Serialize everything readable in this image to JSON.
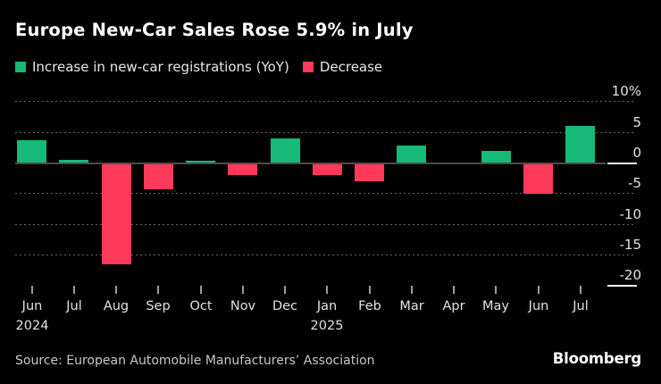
{
  "title": "Europe New-Car Sales Rose 5.9% in July",
  "legend": [
    {
      "name": "increase",
      "label": "Increase in new-car registrations (YoY)",
      "color": "#16b978"
    },
    {
      "name": "decrease",
      "label": "Decrease",
      "color": "#fc3a5a"
    }
  ],
  "source": "Source: European Automobile Manufacturers’ Association",
  "brand": "Bloomberg",
  "colors": {
    "background": "#000000",
    "positive": "#16b978",
    "negative": "#fc3a5a",
    "gridline": "#646464",
    "zero_line": "#4d4d4d",
    "axis_segment": "#ededed",
    "text": "#e2e2e2"
  },
  "chart_data": {
    "type": "bar",
    "title": "Europe New-Car Sales Rose 5.9% in July",
    "categories": [
      "Jun",
      "Jul",
      "Aug",
      "Sep",
      "Oct",
      "Nov",
      "Dec",
      "Jan",
      "Feb",
      "Mar",
      "Apr",
      "May",
      "Jun",
      "Jul"
    ],
    "year_markers": [
      {
        "index": 0,
        "label": "2024"
      },
      {
        "index": 7,
        "label": "2025"
      }
    ],
    "values": [
      3.6,
      0.4,
      -16.6,
      -4.3,
      0.3,
      -2.0,
      4.0,
      -2.1,
      -3.0,
      2.8,
      -0.3,
      1.9,
      -5.1,
      5.9
    ],
    "unit": "%",
    "ylabel": "",
    "xlabel": "",
    "ylim": [
      -20,
      10
    ],
    "yticks": [
      10,
      5,
      0,
      -5,
      -10,
      -15,
      -20
    ],
    "ytick_labels": [
      "10%",
      "5",
      "0",
      "-5",
      "-10",
      "-15",
      "-20"
    ],
    "positive_color": "#16b978",
    "negative_color": "#fc3a5a",
    "grid": "dotted horizontal, zero line solid, -20 shown as short axis segment only",
    "legend_position": "top-left",
    "axis_label_position": "right"
  }
}
